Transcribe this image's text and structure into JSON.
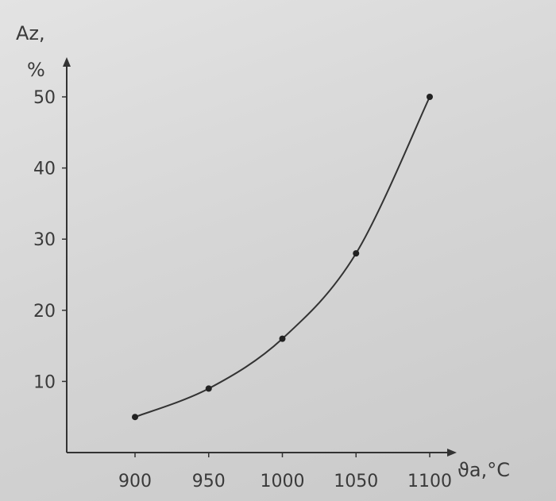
{
  "chart_data": {
    "type": "line",
    "title": "",
    "ylabel": "Az,",
    "ylabel_unit": "%",
    "xlabel": "ϑa,°C",
    "x": [
      900,
      950,
      1000,
      1050,
      1100
    ],
    "y": [
      5,
      9,
      16,
      28,
      50
    ],
    "xticks": [
      "900",
      "950",
      "1000",
      "1050",
      "1100"
    ],
    "yticks": [
      "10",
      "20",
      "30",
      "40",
      "50"
    ],
    "ylim": [
      0,
      50
    ],
    "grid": false,
    "markers": true,
    "colors": {
      "line": "#333333",
      "axis": "#333333",
      "text": "#3a3a3a"
    }
  }
}
